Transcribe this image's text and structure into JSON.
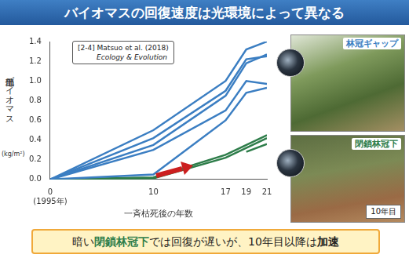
{
  "header": {
    "title": "バイオマスの回復速度は光環境によって異なる"
  },
  "chart_data": {
    "type": "line",
    "xlabel": "一斉枯死後の年数",
    "ylabel": "地上部バイオマス",
    "yunit": "(kg/m²)",
    "x": [
      0,
      10,
      17,
      19,
      21
    ],
    "xlim": [
      0,
      21
    ],
    "xticks": [
      {
        "value": 0,
        "label": "0\n(1995年)"
      },
      10,
      17,
      19,
      21
    ],
    "ylim": [
      0,
      1.4
    ],
    "yticks": [
      {
        "value": 0,
        "label": "0.0"
      },
      0.2,
      0.4,
      0.6,
      0.8,
      {
        "value": 1,
        "label": "1.0"
      },
      1.2,
      1.4
    ],
    "grid": false,
    "series": [
      {
        "color": "#3b7ec2",
        "values": [
          0,
          0.5,
          1.0,
          1.32,
          1.4
        ]
      },
      {
        "color": "#3b7ec2",
        "values": [
          0,
          0.42,
          0.9,
          1.22,
          1.25
        ]
      },
      {
        "color": "#3b7ec2",
        "values": [
          0,
          0.35,
          0.85,
          1.18,
          1.27
        ]
      },
      {
        "color": "#3b7ec2",
        "values": [
          0,
          0.3,
          0.7,
          1.0,
          0.97
        ]
      },
      {
        "color": "#3b7ec2",
        "values": [
          0,
          0.05,
          0.6,
          0.88,
          0.93
        ]
      },
      {
        "color": "#2e7d4a",
        "values": [
          0,
          0.02,
          0.25,
          0.35,
          0.45
        ]
      },
      {
        "color": "#2e7d4a",
        "values": [
          0,
          0.01,
          0.22,
          0.32,
          0.42
        ]
      },
      {
        "color": "#2e7d4a",
        "values": [
          null,
          null,
          null,
          0.28,
          0.36
        ]
      }
    ],
    "annotations": [
      {
        "text": "[2-4] Matsuo et al. (2018)"
      },
      {
        "text": "Ecology & Evolution"
      }
    ]
  },
  "photos": [
    {
      "label": "林冠ギャップ"
    },
    {
      "label": "閉鎖林冠下",
      "note": "10年目"
    }
  ],
  "footer": [
    "暗い",
    "閉鎖林冠下",
    "では回復が遅いが、10年目以降は",
    "加速"
  ]
}
